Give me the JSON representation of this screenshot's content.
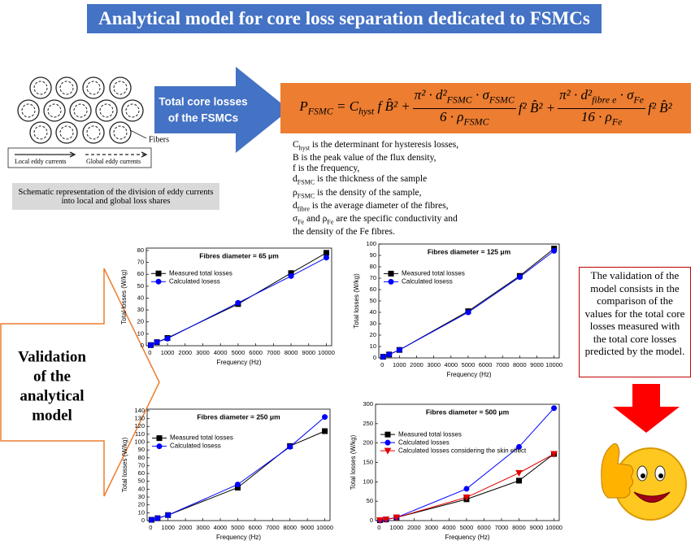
{
  "header": {
    "title": "Analytical model for core loss separation dedicated to FSMCs"
  },
  "schematic": {
    "fibers_label": "Fibers",
    "local_label": "Local eddy currents",
    "global_label": "Global eddy currents",
    "caption": "Schematic representation of the division of eddy currents into local and global loss shares"
  },
  "arrow_text": [
    "Total core losses",
    "of the FSMCs"
  ],
  "formula": {
    "lead": [
      "P",
      "FSMC",
      " = C",
      "hyst",
      " f B̂² +"
    ],
    "frac1": {
      "num": [
        "π² · d²",
        "FSMC",
        " · σ",
        "FSMC"
      ],
      "den": [
        "6 · ρ",
        "FSMC"
      ]
    },
    "mid": "f² B̂² +",
    "frac2": {
      "num": [
        "π² · d²",
        "fibre e",
        " · σ",
        "Fe"
      ],
      "den": [
        "16 · ρ",
        "Fe"
      ]
    },
    "tail": "f² B̂²"
  },
  "description": [
    [
      "C",
      "hyst",
      " is the determinant for hysteresis losses,"
    ],
    [
      "B is the peak value of the flux density,"
    ],
    [
      "f is the frequency,"
    ],
    [
      "d",
      "FSMC",
      " is the thickness of the sample"
    ],
    [
      "ρ",
      "FSMC",
      " is the density of the sample,"
    ],
    [
      "d",
      "fibre",
      " is the average diameter of the fibres,"
    ],
    [
      "σ",
      "Fe",
      " and ρ",
      "Fe",
      " are the specific conductivity and"
    ],
    [
      "the density of the Fe fibres."
    ]
  ],
  "validation_arrow": [
    "Validation",
    "of the",
    "analytical",
    "model"
  ],
  "validation_note": "The validation of the model consists in the comparison of the values for the total core losses measured with the total core losses predicted by the model.",
  "chart_data": [
    {
      "type": "line",
      "title": "Fibres diameter = 65 μm",
      "x_label": "Frequency (Hz)",
      "y_label": "Total losses (W/kg)",
      "x": [
        50,
        400,
        1000,
        5000,
        8000,
        10000
      ],
      "xlim": [
        -200,
        10300
      ],
      "xticks": [
        0,
        1000,
        2000,
        3000,
        4000,
        5000,
        6000,
        7000,
        8000,
        9000,
        10000
      ],
      "ylim": [
        0,
        82
      ],
      "yticks": [
        0,
        10,
        20,
        30,
        40,
        50,
        60,
        70,
        80
      ],
      "legend": "upper left",
      "series": [
        {
          "name": "Measured total losses",
          "color": "#000000",
          "marker": "square",
          "values": [
            0.5,
            3,
            6.5,
            35,
            61,
            78
          ]
        },
        {
          "name": "Calculated losess",
          "color": "#0000ff",
          "marker": "circle",
          "values": [
            0.5,
            3,
            6,
            36,
            58.5,
            74
          ]
        }
      ]
    },
    {
      "type": "line",
      "title": "Fibres diameter = 125 μm",
      "x_label": "Frequency (Hz)",
      "y_label": "Total losses (W/kg)",
      "x": [
        50,
        400,
        1000,
        5000,
        8000,
        10000
      ],
      "xlim": [
        -200,
        10300
      ],
      "xticks": [
        0,
        1000,
        2000,
        3000,
        4000,
        5000,
        6000,
        7000,
        8000,
        9000,
        10000
      ],
      "ylim": [
        0,
        100
      ],
      "yticks": [
        0,
        10,
        20,
        30,
        40,
        50,
        60,
        70,
        80,
        90,
        100
      ],
      "legend": "upper left",
      "series": [
        {
          "name": "Measured total losses",
          "color": "#000000",
          "marker": "square",
          "values": [
            1,
            3,
            7,
            41,
            72,
            96
          ]
        },
        {
          "name": "Calculated losess",
          "color": "#0000ff",
          "marker": "circle",
          "values": [
            1,
            3,
            7,
            40,
            71,
            94
          ]
        }
      ]
    },
    {
      "type": "line",
      "title": "Fibres diameter = 250 μm",
      "x_label": "Frequency (Hz)",
      "y_label": "Total losses (W/kg)",
      "x": [
        50,
        400,
        1000,
        5000,
        8000,
        10000
      ],
      "xlim": [
        -200,
        10300
      ],
      "xticks": [
        0,
        1000,
        2000,
        3000,
        4000,
        5000,
        6000,
        7000,
        8000,
        9000,
        10000
      ],
      "ylim": [
        0,
        142
      ],
      "yticks": [
        0,
        10,
        20,
        30,
        40,
        50,
        60,
        70,
        80,
        90,
        100,
        110,
        120,
        130,
        140
      ],
      "legend": "upper left",
      "series": [
        {
          "name": "Measured total losses",
          "color": "#000000",
          "marker": "square",
          "values": [
            1,
            3,
            7,
            42,
            95,
            114
          ]
        },
        {
          "name": "Calculated losess",
          "color": "#0000ff",
          "marker": "circle",
          "values": [
            1,
            3,
            7,
            46,
            94,
            132
          ]
        }
      ]
    },
    {
      "type": "line",
      "title": "Fibres diameter = 500 μm",
      "x_label": "Frequency (Hz)",
      "y_label": "Total losses (W/kg)",
      "x": [
        50,
        400,
        1000,
        5000,
        8000,
        10000
      ],
      "xlim": [
        -200,
        10300
      ],
      "xticks": [
        0,
        1000,
        2000,
        3000,
        4000,
        5000,
        6000,
        7000,
        8000,
        9000,
        10000
      ],
      "ylim": [
        0,
        300
      ],
      "yticks": [
        0,
        50,
        100,
        150,
        200,
        250,
        300
      ],
      "legend": "upper left",
      "series": [
        {
          "name": "Measured total losses",
          "color": "#000000",
          "marker": "square",
          "values": [
            1,
            3,
            8,
            55,
            103,
            172
          ]
        },
        {
          "name": "Calculated losses",
          "color": "#0000ff",
          "marker": "circle",
          "values": [
            1,
            3,
            8,
            82,
            190,
            290
          ]
        },
        {
          "name": "Calculated losses considering the skin effect",
          "color": "#e00000",
          "marker": "triangle-down",
          "values": [
            1,
            3,
            8,
            60,
            123,
            172
          ]
        }
      ]
    }
  ]
}
